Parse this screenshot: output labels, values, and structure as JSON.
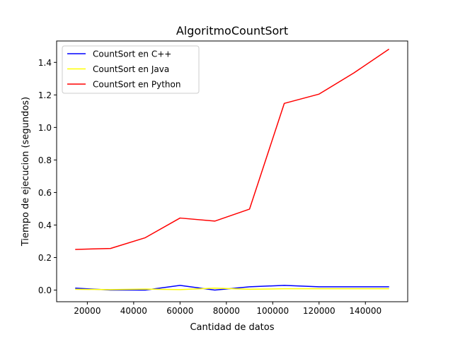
{
  "chart_data": {
    "type": "line",
    "title": "AlgoritmoCountSort",
    "xlabel": "Cantidad de datos",
    "ylabel": "Tiempo de ejecucion (segundos)",
    "x": [
      15000,
      30000,
      45000,
      60000,
      75000,
      90000,
      105000,
      120000,
      135000,
      150000
    ],
    "xlim": [
      6750,
      158250
    ],
    "ylim": [
      -0.0716,
      1.5316
    ],
    "xticks": [
      20000,
      40000,
      60000,
      80000,
      100000,
      120000,
      140000
    ],
    "yticks": [
      0.0,
      0.2,
      0.4,
      0.6,
      0.8,
      1.0,
      1.2,
      1.4
    ],
    "grid": false,
    "legend_position": "upper left",
    "series": [
      {
        "name": "CountSort en C++",
        "color": "#0000ff",
        "values": [
          0.012,
          0.0,
          0.0,
          0.029,
          0.0,
          0.02,
          0.029,
          0.02,
          0.02,
          0.02
        ]
      },
      {
        "name": "CountSort en Java",
        "color": "#ffff00",
        "values": [
          0.005,
          0.003,
          0.006,
          0.003,
          0.012,
          0.005,
          0.008,
          0.008,
          0.008,
          0.008
        ]
      },
      {
        "name": "CountSort en Python",
        "color": "#ff0000",
        "values": [
          0.25,
          0.256,
          0.322,
          0.443,
          0.424,
          0.498,
          1.148,
          1.205,
          1.335,
          1.48
        ]
      }
    ]
  }
}
